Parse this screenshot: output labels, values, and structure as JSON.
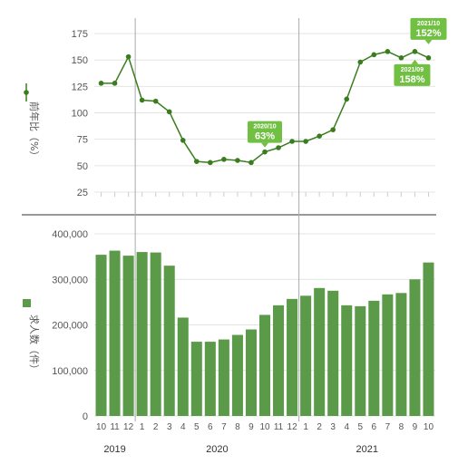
{
  "colors": {
    "line": "#3a7d1e",
    "bar": "#5a9a48",
    "callout": "#72c043",
    "grid": "#e4e4e4",
    "separator": "#aaaaaa",
    "divider": "#999999"
  },
  "chart_data": [
    {
      "type": "line",
      "ylabel": "前年比（%）",
      "ylim": [
        25,
        175
      ],
      "yticks": [
        "175",
        "150",
        "125",
        "100",
        "75",
        "50",
        "25"
      ],
      "x": [
        "10",
        "11",
        "12",
        "1",
        "2",
        "3",
        "4",
        "5",
        "6",
        "7",
        "8",
        "9",
        "10",
        "11",
        "12",
        "1",
        "2",
        "3",
        "4",
        "5",
        "6",
        "7",
        "8",
        "9",
        "10"
      ],
      "values": [
        128,
        128,
        153,
        112,
        111,
        101,
        74,
        54,
        53,
        56,
        55,
        53,
        63,
        67,
        73,
        73,
        78,
        84,
        113,
        148,
        155,
        158,
        152,
        158,
        152
      ],
      "grid": true,
      "annotations": [
        {
          "index": 12,
          "date": "2020/10",
          "value": "63%"
        },
        {
          "index": 24,
          "date": "2021/10",
          "value": "152%"
        },
        {
          "index": 23,
          "date": "2021/09",
          "value": "158%"
        }
      ]
    },
    {
      "type": "bar",
      "ylabel": "求人数（件）",
      "ylim": [
        0,
        400000
      ],
      "yticks": [
        "400,000",
        "300,000",
        "200,000",
        "100,000",
        "0"
      ],
      "categories": [
        "10",
        "11",
        "12",
        "1",
        "2",
        "3",
        "4",
        "5",
        "6",
        "7",
        "8",
        "9",
        "10",
        "11",
        "12",
        "1",
        "2",
        "3",
        "4",
        "5",
        "6",
        "7",
        "8",
        "9",
        "10"
      ],
      "values": [
        354000,
        363000,
        352000,
        360000,
        359000,
        330000,
        216000,
        163000,
        163000,
        168000,
        178000,
        190000,
        222000,
        243000,
        257000,
        264000,
        281000,
        275000,
        243000,
        241000,
        253000,
        267000,
        270000,
        300000,
        337000
      ],
      "grid": true
    }
  ],
  "years": [
    "2019",
    "2020",
    "2021"
  ]
}
